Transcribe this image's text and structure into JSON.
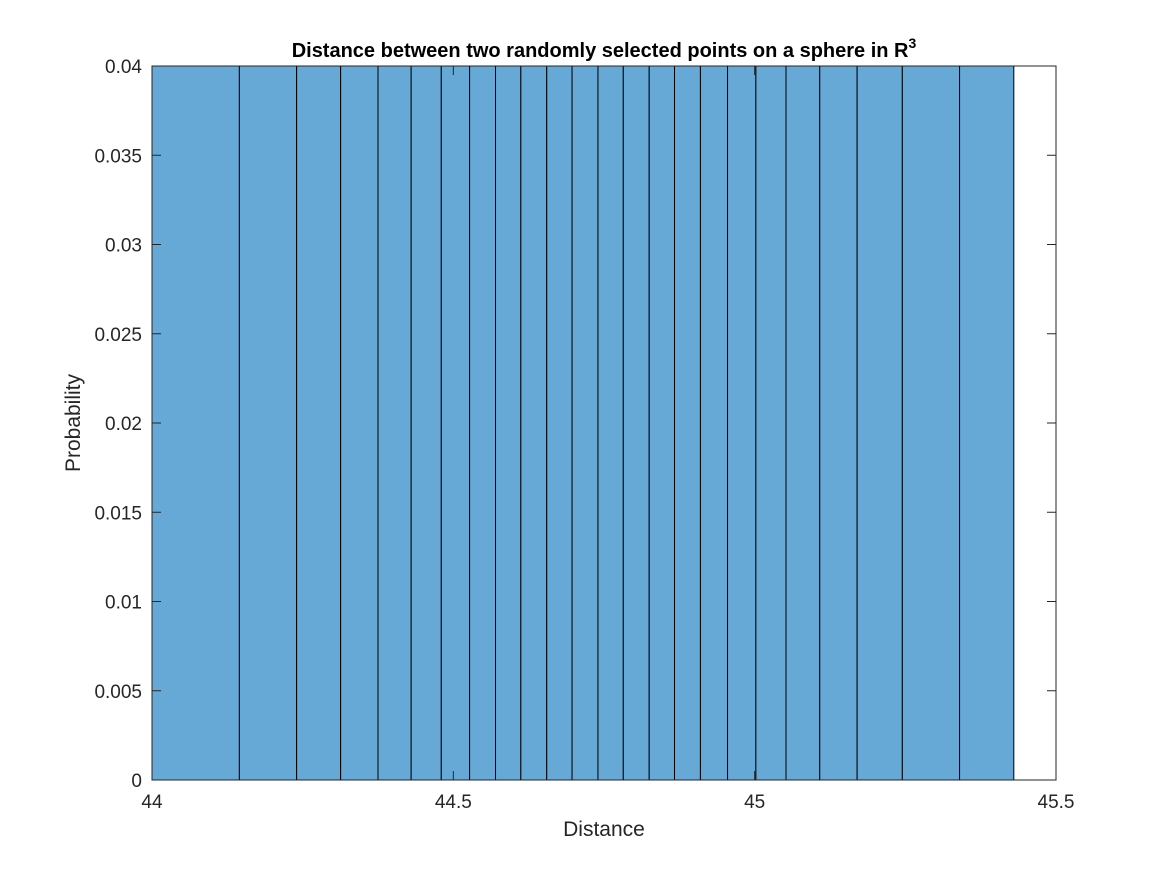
{
  "chart_data": {
    "type": "bar",
    "title": "Distance between two randomly selected points on a sphere in R",
    "title_superscript": "3",
    "xlabel": "Distance",
    "ylabel": "Probability",
    "xlim": [
      44,
      45.5
    ],
    "ylim": [
      0,
      0.04
    ],
    "x_ticks": [
      "44",
      "44.5",
      "45",
      "45.5"
    ],
    "y_ticks": [
      "0",
      "0.005",
      "0.01",
      "0.015",
      "0.02",
      "0.025",
      "0.03",
      "0.035",
      "0.04"
    ],
    "x_tick_values": [
      44,
      44.5,
      45,
      45.5
    ],
    "y_tick_values": [
      0,
      0.005,
      0.01,
      0.015,
      0.02,
      0.025,
      0.03,
      0.035,
      0.04
    ],
    "bin_edges": [
      44.0,
      44.145,
      44.24,
      44.313,
      44.375,
      44.43,
      44.48,
      44.527,
      44.57,
      44.612,
      44.655,
      44.697,
      44.74,
      44.782,
      44.825,
      44.867,
      44.91,
      44.955,
      45.002,
      45.052,
      45.108,
      45.17,
      45.245,
      45.34,
      45.43
    ],
    "values": [
      0.04,
      0.04,
      0.04,
      0.04,
      0.04,
      0.04,
      0.04,
      0.04,
      0.04,
      0.04,
      0.04,
      0.04,
      0.04,
      0.04,
      0.04,
      0.04,
      0.04,
      0.04,
      0.04,
      0.04,
      0.04,
      0.04,
      0.04,
      0.04
    ],
    "bar_color": "#66a9d6",
    "edge_color": "#000000",
    "grid": false,
    "box": true
  }
}
